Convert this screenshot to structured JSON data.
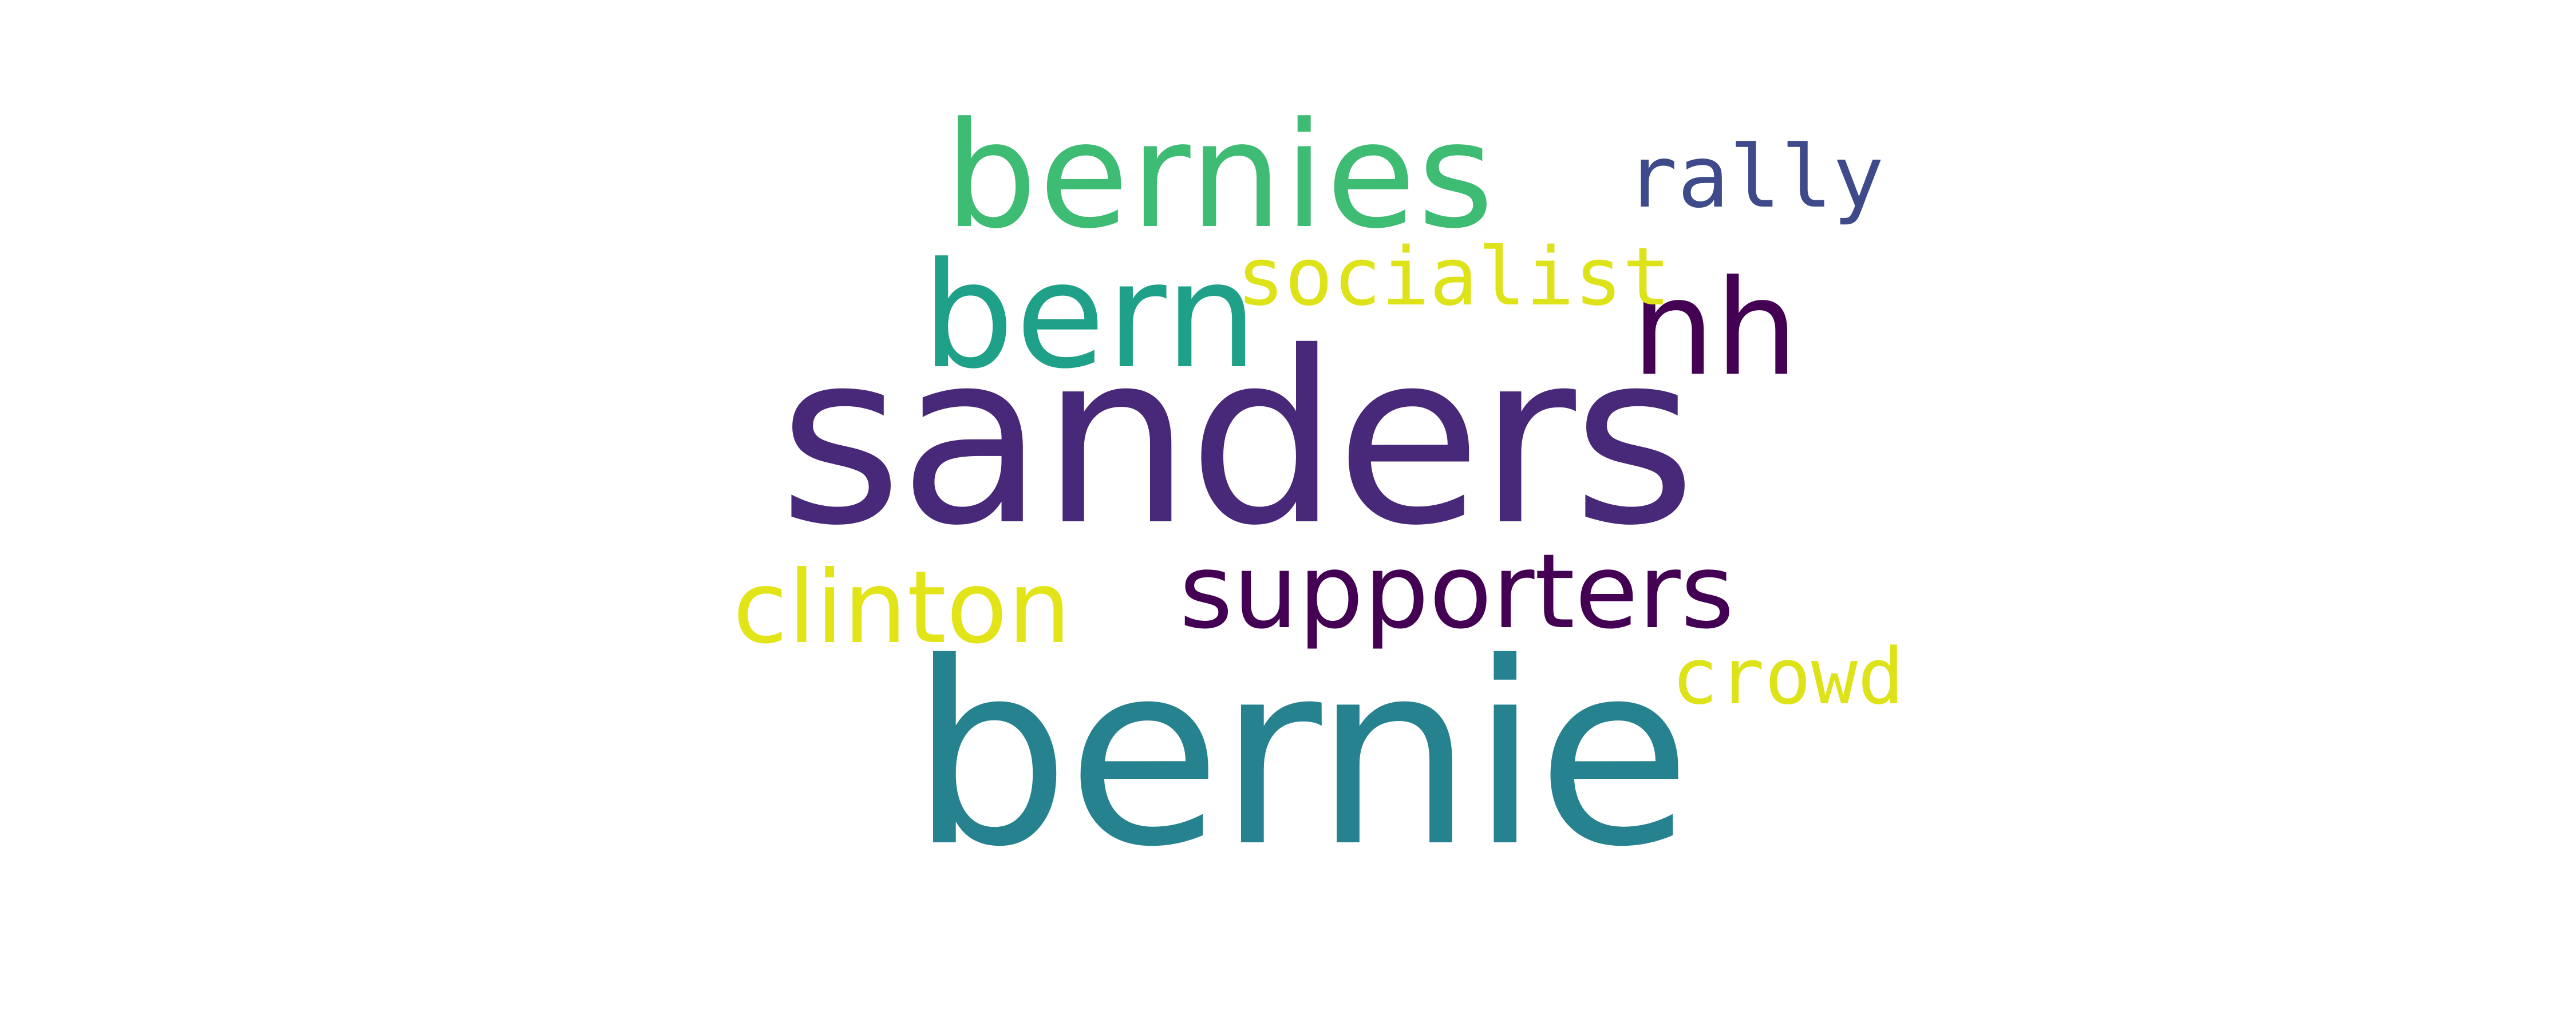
{
  "word_cloud": {
    "words": [
      {
        "key": "sanders",
        "text": "sanders",
        "color": "#482878"
      },
      {
        "key": "bernie",
        "text": "bernie",
        "color": "#26828e"
      },
      {
        "key": "bernies",
        "text": "bernies",
        "color": "#3fbc73"
      },
      {
        "key": "bern",
        "text": "bern",
        "color": "#1fa088"
      },
      {
        "key": "nh",
        "text": "nh",
        "color": "#440154"
      },
      {
        "key": "rally",
        "text": "rally",
        "color": "#3e4a89"
      },
      {
        "key": "socialist",
        "text": "socialist",
        "color": "#dde318"
      },
      {
        "key": "supporters",
        "text": "supporters",
        "color": "#440154"
      },
      {
        "key": "clinton",
        "text": "clinton",
        "color": "#e2e418"
      },
      {
        "key": "crowd",
        "text": "crowd",
        "color": "#dde318"
      }
    ]
  }
}
